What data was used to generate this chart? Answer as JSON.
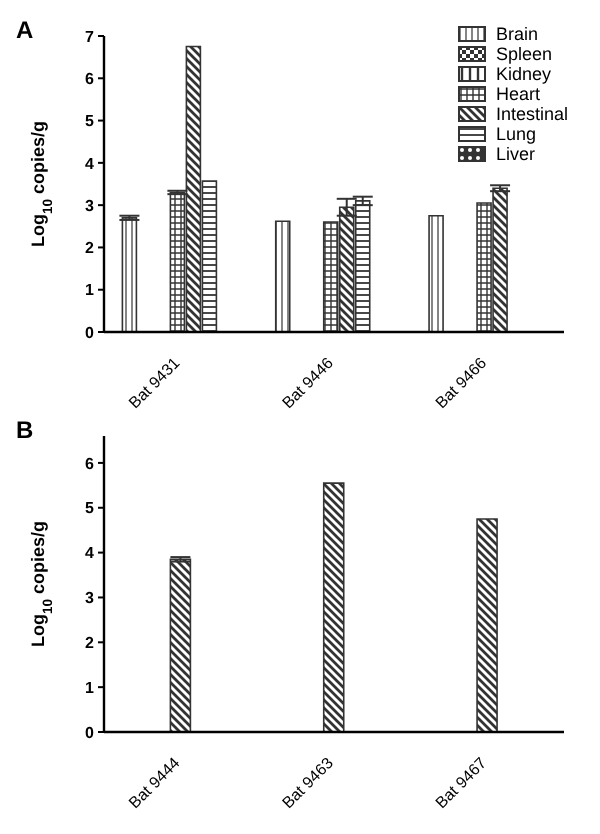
{
  "chart_data": [
    {
      "type": "bar",
      "title": "A",
      "ylabel": "Log$_{10}$ copies/g",
      "categories": [
        "Bat 9431",
        "Bat 9446",
        "Bat 9466"
      ],
      "series": [
        {
          "name": "Brain",
          "color": "#333333",
          "values": [
            2.7,
            2.62,
            2.75
          ],
          "errors": [
            0.05,
            null,
            null
          ]
        },
        {
          "name": "Spleen",
          "color": "#333333",
          "values": [
            null,
            null,
            null
          ]
        },
        {
          "name": "Kidney",
          "color": "#333333",
          "values": [
            null,
            null,
            null
          ]
        },
        {
          "name": "Heart",
          "color": "#333333",
          "values": [
            3.3,
            2.6,
            3.05
          ],
          "errors": [
            0.04,
            null,
            null
          ]
        },
        {
          "name": "Intestinal",
          "color": "#333333",
          "values": [
            6.75,
            2.95,
            3.4
          ],
          "errors": [
            null,
            0.2,
            0.07
          ]
        },
        {
          "name": "Lung",
          "color": "#333333",
          "values": [
            3.57,
            3.1,
            null
          ],
          "errors": [
            null,
            0.1,
            null
          ]
        },
        {
          "name": "Liver",
          "color": "#333333",
          "values": [
            null,
            null,
            null
          ]
        }
      ],
      "ylim": [
        0,
        7
      ],
      "yticks": [
        0,
        1,
        2,
        3,
        4,
        5,
        6,
        7
      ],
      "legend": "top right"
    },
    {
      "type": "bar",
      "title": "B",
      "ylabel": "Log$_{10}$ copies/g",
      "categories": [
        "Bat 9444",
        "Bat 9463",
        "Bat 9467"
      ],
      "series": [
        {
          "color": "#333333",
          "values": [
            3.85,
            5.55,
            4.75
          ],
          "errors": [
            0.05,
            null,
            null
          ]
        }
      ],
      "ylim": [
        0,
        6.6
      ],
      "yticks": [
        0,
        1,
        2,
        3,
        4,
        5,
        6
      ]
    }
  ]
}
